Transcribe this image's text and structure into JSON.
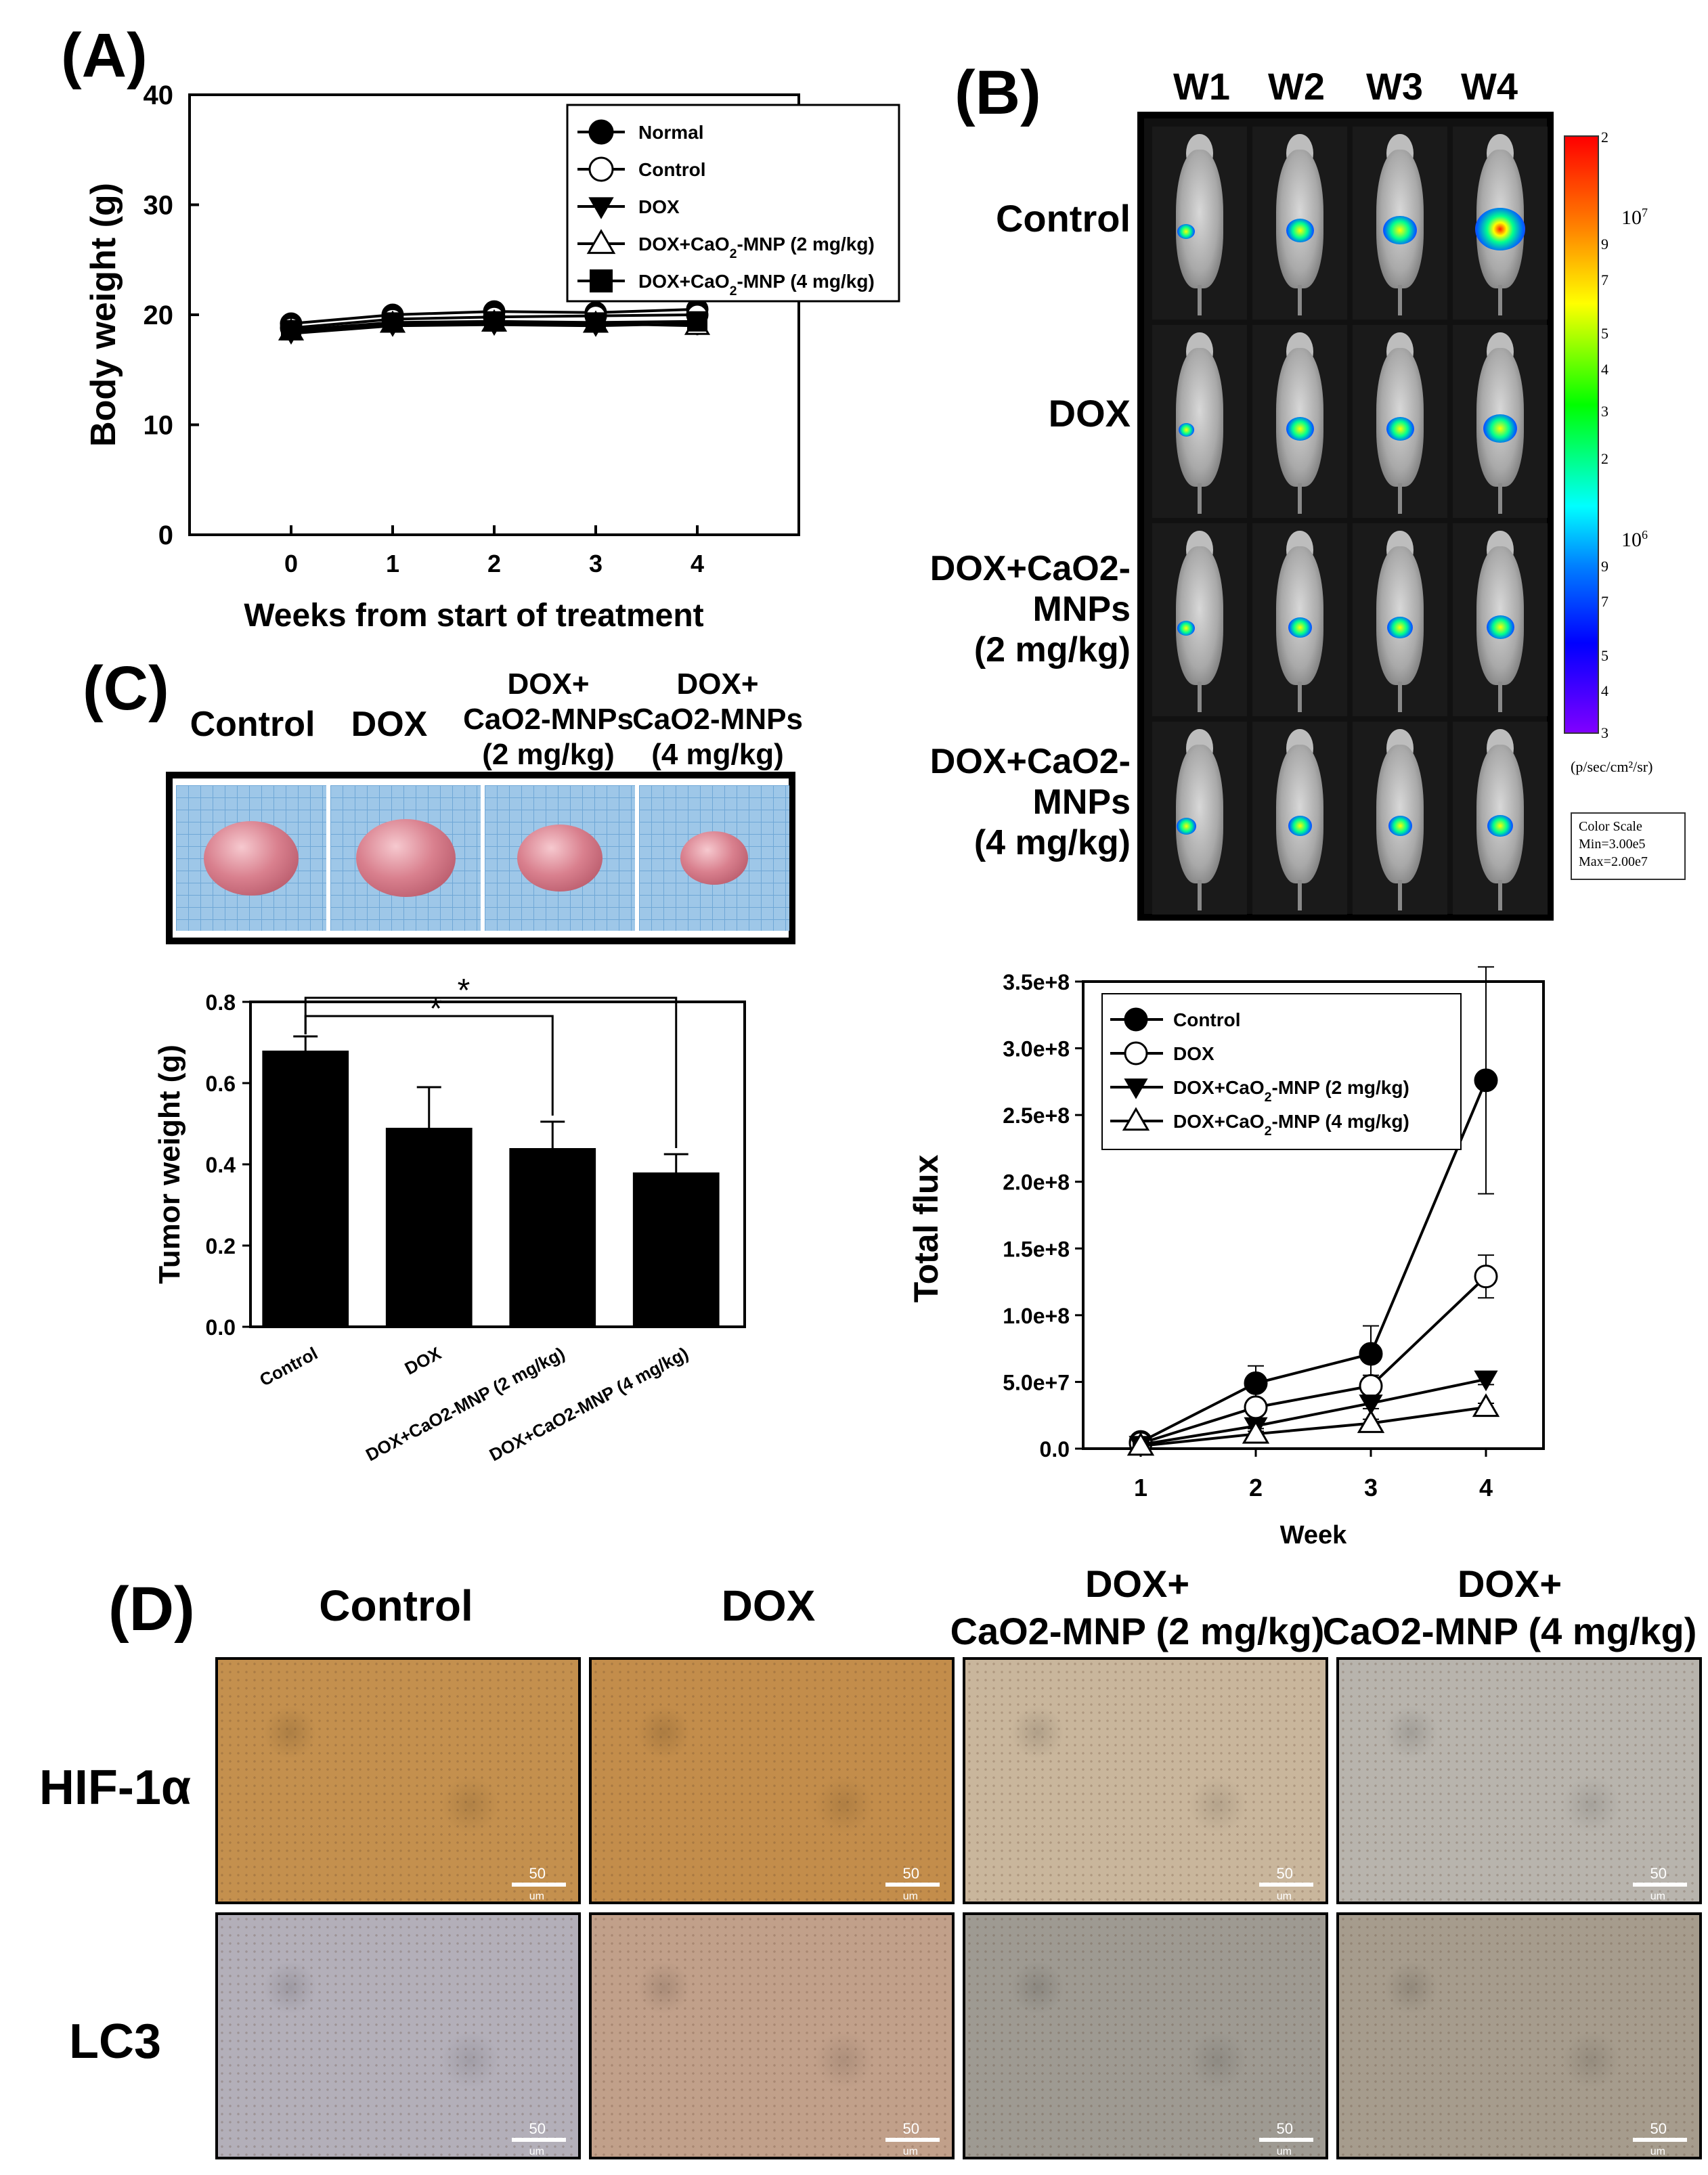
{
  "panels": {
    "a": "(A)",
    "b": "(B)",
    "c": "(C)",
    "d": "(D)"
  },
  "colors": {
    "axis": "#000000",
    "hot": "#ff0000",
    "cold": "#7000ff",
    "tumor": "#d9808e",
    "ihc_brown": "#c48a45",
    "ihc_grey": "#a9a5a0"
  },
  "chart_data": [
    {
      "type": "line",
      "id": "body-weight",
      "title": "",
      "xlabel": "Weeks from start of treatment",
      "ylabel": "Body weight (g)",
      "xlim": [
        -1,
        5
      ],
      "ylim": [
        0,
        40
      ],
      "xticks": [
        "0",
        "1",
        "2",
        "3",
        "4"
      ],
      "yticks": [
        "0",
        "10",
        "20",
        "30",
        "40"
      ],
      "x": [
        0,
        1,
        2,
        3,
        4
      ],
      "legend_position": "top-right",
      "series": [
        {
          "name": "Normal",
          "marker": "filled-circle",
          "values": [
            19.2,
            20.0,
            20.3,
            20.2,
            20.5
          ]
        },
        {
          "name": "Control",
          "marker": "open-circle",
          "values": [
            18.8,
            19.6,
            19.8,
            19.9,
            20.0
          ]
        },
        {
          "name": "DOX",
          "marker": "filled-triangle-down",
          "values": [
            18.3,
            19.0,
            19.1,
            19.0,
            19.2
          ]
        },
        {
          "name": "DOX+CaO2-MNP (2 mg/kg)",
          "marker": "open-triangle-up",
          "values": [
            18.5,
            19.2,
            19.3,
            19.2,
            19.0
          ]
        },
        {
          "name": "DOX+CaO2-MNP (4 mg/kg)",
          "marker": "filled-square",
          "values": [
            18.6,
            19.3,
            19.4,
            19.3,
            19.4
          ]
        }
      ],
      "legend_labels": [
        "Normal",
        "Control",
        "DOX",
        "DOX+CaO2-MNP (2 mg/kg)",
        "DOX+CaO2-MNP (4 mg/kg)"
      ]
    },
    {
      "type": "bar",
      "id": "tumor-weight",
      "ylabel": "Tumor weight (g)",
      "ylim": [
        0,
        0.8
      ],
      "yticks": [
        "0.0",
        "0.2",
        "0.4",
        "0.6",
        "0.8"
      ],
      "categories": [
        "Control",
        "DOX",
        "DOX+CaO2-MNP (2 mg/kg)",
        "DOX+CaO2-MNP (4 mg/kg)"
      ],
      "values": [
        0.68,
        0.49,
        0.44,
        0.38
      ],
      "errors": [
        0.035,
        0.1,
        0.065,
        0.045
      ],
      "annotations": [
        "*",
        "*"
      ]
    },
    {
      "type": "line",
      "id": "total-flux",
      "xlabel": "Week",
      "ylabel": "Total flux",
      "xlim": [
        0.5,
        4.5
      ],
      "ylim": [
        0,
        350000000
      ],
      "xticks": [
        "1",
        "2",
        "3",
        "4"
      ],
      "yticks": [
        "0.0",
        "5.0e+7",
        "1.0e+8",
        "1.5e+8",
        "2.0e+8",
        "2.5e+8",
        "3.0e+8",
        "3.5e+8"
      ],
      "x": [
        1,
        2,
        3,
        4
      ],
      "legend_position": "top-left",
      "series": [
        {
          "name": "Control",
          "marker": "filled-circle",
          "values": [
            5000000,
            49000000,
            71000000,
            276000000
          ],
          "errors": [
            3000000,
            13000000,
            21000000,
            85000000
          ]
        },
        {
          "name": "DOX",
          "marker": "open-circle",
          "values": [
            4000000,
            31000000,
            47000000,
            129000000
          ],
          "errors": [
            2000000,
            5000000,
            8000000,
            16000000
          ]
        },
        {
          "name": "DOX+CaO2-MNP (2 mg/kg)",
          "marker": "filled-triangle-down",
          "values": [
            3000000,
            17000000,
            34000000,
            52000000
          ],
          "errors": [
            1000000,
            2000000,
            4000000,
            4000000
          ]
        },
        {
          "name": "DOX+CaO2-MNP (4 mg/kg)",
          "marker": "open-triangle-up",
          "values": [
            2000000,
            11000000,
            19000000,
            31000000
          ],
          "errors": [
            1000000,
            2000000,
            3000000,
            3000000
          ]
        }
      ],
      "legend_labels": [
        "Control",
        "DOX",
        "DOX+CaO2-MNP (2 mg/kg)",
        "DOX+CaO2-MNP (4 mg/kg)"
      ]
    }
  ],
  "imaging": {
    "weeks": [
      "W1",
      "W2",
      "W3",
      "W4"
    ],
    "rows": [
      {
        "label_lines": [
          "Control"
        ]
      },
      {
        "label_lines": [
          "DOX"
        ]
      },
      {
        "label_lines": [
          "DOX+CaO2-",
          "MNPs",
          "(2 mg/kg)"
        ]
      },
      {
        "label_lines": [
          "DOX+CaO2-",
          "MNPs",
          "(4 mg/kg)"
        ]
      }
    ],
    "signal": [
      [
        0.2,
        0.45,
        0.6,
        1.0
      ],
      [
        0.15,
        0.45,
        0.45,
        0.6
      ],
      [
        0.2,
        0.35,
        0.4,
        0.45
      ],
      [
        0.25,
        0.35,
        0.35,
        0.4
      ]
    ],
    "colorbar": {
      "ticks": [
        "2",
        "10^7",
        "9",
        "7",
        "5",
        "4",
        "3",
        "2",
        "10^6",
        "9",
        "7",
        "5",
        "4",
        "3"
      ],
      "unit": "(p/sec/cm²/sr)",
      "scale_title": "Color Scale",
      "scale_min": "Min=3.00e5",
      "scale_max": "Max=2.00e7"
    }
  },
  "tumors": {
    "headers": [
      "Control",
      "DOX",
      "DOX+",
      "CaO2-MNPs",
      "(2 mg/kg)",
      "DOX+",
      "CaO2-MNPs",
      "(4 mg/kg)"
    ],
    "sizes": [
      1.0,
      1.05,
      0.9,
      0.72
    ]
  },
  "ihc": {
    "columns": [
      "Control",
      "DOX",
      "DOX+",
      "CaO2-MNP (2 mg/kg)",
      "DOX+",
      "CaO2-MNP (4 mg/kg)"
    ],
    "rows": [
      "HIF-1α",
      "LC3"
    ],
    "scale": "50",
    "scale_unit": "um",
    "tints": [
      [
        "#c4904e",
        "#c38d4b",
        "#c9b69c",
        "#b8b4ad"
      ],
      [
        "#b3afb9",
        "#c1a08a",
        "#9e9a92",
        "#a69c8d"
      ]
    ]
  }
}
